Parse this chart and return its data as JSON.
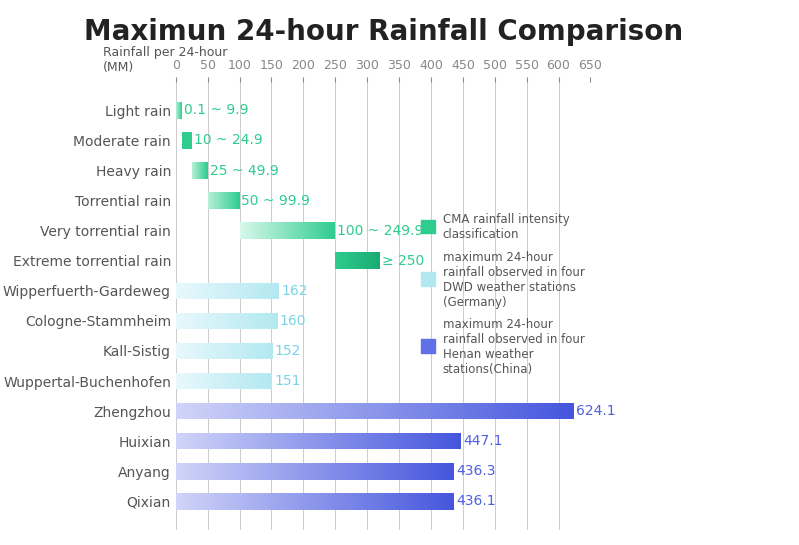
{
  "title": "Maximun 24-hour Rainfall Comparison",
  "xlabel_top": "Rainfall per 24-hour\n(MM)",
  "xlim": [
    0,
    650
  ],
  "xticks": [
    0,
    50,
    100,
    150,
    200,
    250,
    300,
    350,
    400,
    450,
    500,
    550,
    600,
    650
  ],
  "background_color": "#ffffff",
  "categories": [
    "Light rain",
    "Moderate rain",
    "Heavy rain",
    "Torrential rain",
    "Very torrential rain",
    "Extreme torrential rain",
    "Wipperfuerth-Gardeweg",
    "Cologne-Stammheim",
    "Kall-Sistig",
    "Wuppertal-Buchenhofen",
    "Zhengzhou",
    "Huixian",
    "Anyang",
    "Qixian"
  ],
  "values": [
    9.9,
    24.9,
    49.9,
    99.9,
    249.9,
    320,
    162,
    160,
    152,
    151,
    624.1,
    447.1,
    436.3,
    436.1
  ],
  "bar_starts": [
    0.1,
    10,
    25,
    50,
    100,
    250,
    0,
    0,
    0,
    0,
    0,
    0,
    0,
    0
  ],
  "bar_widths": [
    9.8,
    14.9,
    24.9,
    49.9,
    149.9,
    70,
    162,
    160,
    152,
    151,
    624.1,
    447.1,
    436.3,
    436.1
  ],
  "labels": [
    "0.1 ~ 9.9",
    "10 ~ 24.9",
    "25 ~ 49.9",
    "50 ~ 99.9",
    "100 ~ 249.9",
    "≥ 250",
    "162",
    "160",
    "152",
    "151",
    "624.1",
    "447.1",
    "436.3",
    "436.1"
  ],
  "bar_type": [
    "cma",
    "cma",
    "cma",
    "cma",
    "cma",
    "cma",
    "dwd",
    "dwd",
    "dwd",
    "dwd",
    "henan",
    "henan",
    "henan",
    "henan"
  ],
  "cma_colors_start": [
    "#2ecc8e",
    "#2ecc8e",
    "#2ecc8e",
    "#2ecc8e",
    "#b2f0d8",
    "#2ecc8e"
  ],
  "cma_colors_end": [
    "#2ecc8e",
    "#2ecc8e",
    "#2ecc8e",
    "#2ecc8e",
    "#2ecc8e",
    "#2ecc8e"
  ],
  "dwd_color": "#b2e8f0",
  "henan_color_start": "#c5caf5",
  "henan_color_end": "#5060e0",
  "label_color_cma": "#2ecc8e",
  "label_color_dwd": "#7ad4e8",
  "label_color_henan": "#5060e0",
  "legend_items": [
    {
      "label": "CMA rainfall intensity\nclassification",
      "color": "#2ecc8e"
    },
    {
      "label": "maximum 24-hour\nrainfall observed in four\nDWD weather stations\n(Germany)",
      "color": "#b2e8f0"
    },
    {
      "label": "maximum 24-hour\nrainfall observed in four\nHenan weather\nstations(China)",
      "color": "#6070e8"
    }
  ],
  "title_fontsize": 20,
  "label_fontsize": 10,
  "tick_fontsize": 9,
  "axis_label_fontsize": 9
}
